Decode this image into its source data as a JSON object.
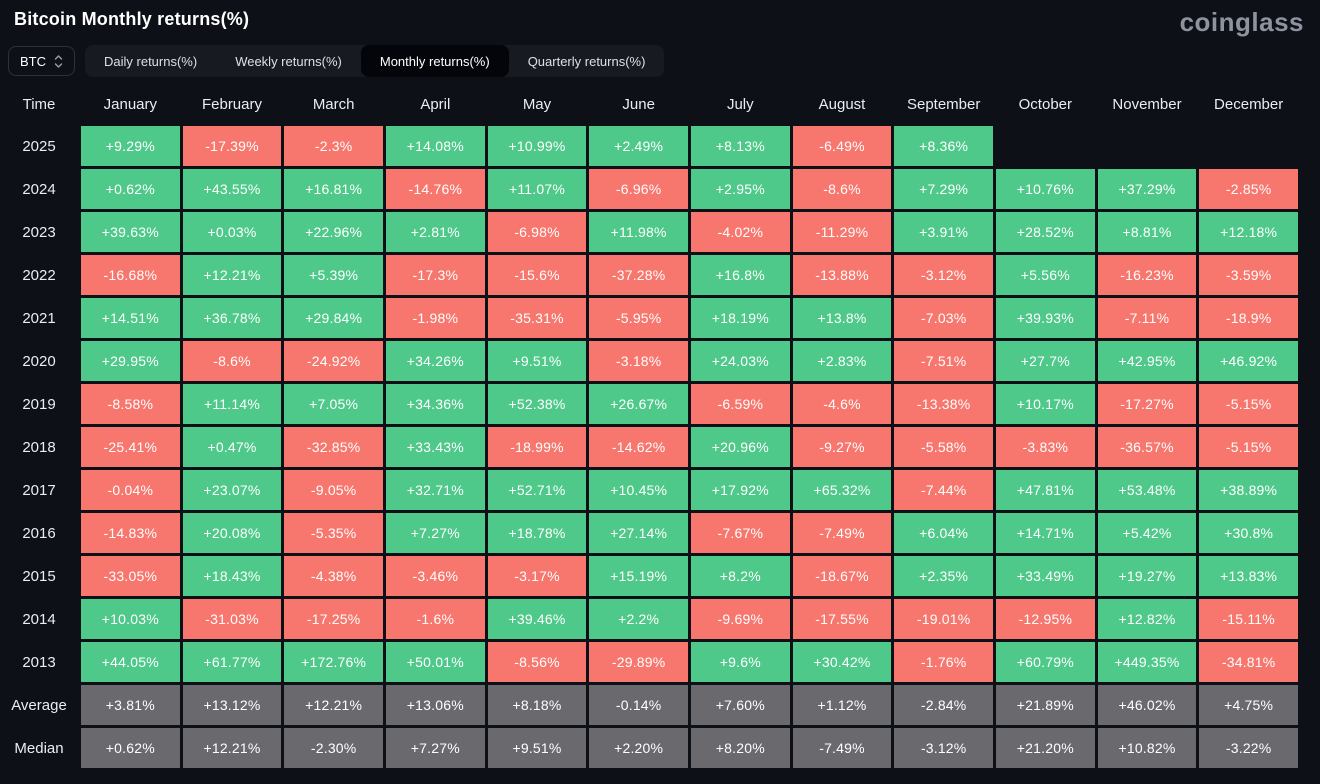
{
  "header": {
    "title": "Bitcoin Monthly returns(%)",
    "logo": "coinglass"
  },
  "controls": {
    "coin": "BTC",
    "tabs": [
      {
        "label": "Daily returns(%)",
        "active": false
      },
      {
        "label": "Weekly returns(%)",
        "active": false
      },
      {
        "label": "Monthly returns(%)",
        "active": true
      },
      {
        "label": "Quarterly returns(%)",
        "active": false
      }
    ]
  },
  "chart_data": {
    "type": "heatmap",
    "title": "Bitcoin Monthly returns(%)",
    "columns": [
      "Time",
      "January",
      "February",
      "March",
      "April",
      "May",
      "June",
      "July",
      "August",
      "September",
      "October",
      "November",
      "December"
    ],
    "colors": {
      "positive": "#4ec98a",
      "negative": "#f7766d",
      "summary": "#6a6a6e"
    },
    "rows": [
      {
        "label": "2025",
        "kind": "year",
        "values": [
          "+9.29%",
          "-17.39%",
          "-2.3%",
          "+14.08%",
          "+10.99%",
          "+2.49%",
          "+8.13%",
          "-6.49%",
          "+8.36%",
          "",
          "",
          ""
        ]
      },
      {
        "label": "2024",
        "kind": "year",
        "values": [
          "+0.62%",
          "+43.55%",
          "+16.81%",
          "-14.76%",
          "+11.07%",
          "-6.96%",
          "+2.95%",
          "-8.6%",
          "+7.29%",
          "+10.76%",
          "+37.29%",
          "-2.85%"
        ]
      },
      {
        "label": "2023",
        "kind": "year",
        "values": [
          "+39.63%",
          "+0.03%",
          "+22.96%",
          "+2.81%",
          "-6.98%",
          "+11.98%",
          "-4.02%",
          "-11.29%",
          "+3.91%",
          "+28.52%",
          "+8.81%",
          "+12.18%"
        ]
      },
      {
        "label": "2022",
        "kind": "year",
        "values": [
          "-16.68%",
          "+12.21%",
          "+5.39%",
          "-17.3%",
          "-15.6%",
          "-37.28%",
          "+16.8%",
          "-13.88%",
          "-3.12%",
          "+5.56%",
          "-16.23%",
          "-3.59%"
        ]
      },
      {
        "label": "2021",
        "kind": "year",
        "values": [
          "+14.51%",
          "+36.78%",
          "+29.84%",
          "-1.98%",
          "-35.31%",
          "-5.95%",
          "+18.19%",
          "+13.8%",
          "-7.03%",
          "+39.93%",
          "-7.11%",
          "-18.9%"
        ]
      },
      {
        "label": "2020",
        "kind": "year",
        "values": [
          "+29.95%",
          "-8.6%",
          "-24.92%",
          "+34.26%",
          "+9.51%",
          "-3.18%",
          "+24.03%",
          "+2.83%",
          "-7.51%",
          "+27.7%",
          "+42.95%",
          "+46.92%"
        ]
      },
      {
        "label": "2019",
        "kind": "year",
        "values": [
          "-8.58%",
          "+11.14%",
          "+7.05%",
          "+34.36%",
          "+52.38%",
          "+26.67%",
          "-6.59%",
          "-4.6%",
          "-13.38%",
          "+10.17%",
          "-17.27%",
          "-5.15%"
        ]
      },
      {
        "label": "2018",
        "kind": "year",
        "values": [
          "-25.41%",
          "+0.47%",
          "-32.85%",
          "+33.43%",
          "-18.99%",
          "-14.62%",
          "+20.96%",
          "-9.27%",
          "-5.58%",
          "-3.83%",
          "-36.57%",
          "-5.15%"
        ]
      },
      {
        "label": "2017",
        "kind": "year",
        "values": [
          "-0.04%",
          "+23.07%",
          "-9.05%",
          "+32.71%",
          "+52.71%",
          "+10.45%",
          "+17.92%",
          "+65.32%",
          "-7.44%",
          "+47.81%",
          "+53.48%",
          "+38.89%"
        ]
      },
      {
        "label": "2016",
        "kind": "year",
        "values": [
          "-14.83%",
          "+20.08%",
          "-5.35%",
          "+7.27%",
          "+18.78%",
          "+27.14%",
          "-7.67%",
          "-7.49%",
          "+6.04%",
          "+14.71%",
          "+5.42%",
          "+30.8%"
        ]
      },
      {
        "label": "2015",
        "kind": "year",
        "values": [
          "-33.05%",
          "+18.43%",
          "-4.38%",
          "-3.46%",
          "-3.17%",
          "+15.19%",
          "+8.2%",
          "-18.67%",
          "+2.35%",
          "+33.49%",
          "+19.27%",
          "+13.83%"
        ]
      },
      {
        "label": "2014",
        "kind": "year",
        "values": [
          "+10.03%",
          "-31.03%",
          "-17.25%",
          "-1.6%",
          "+39.46%",
          "+2.2%",
          "-9.69%",
          "-17.55%",
          "-19.01%",
          "-12.95%",
          "+12.82%",
          "-15.11%"
        ]
      },
      {
        "label": "2013",
        "kind": "year",
        "values": [
          "+44.05%",
          "+61.77%",
          "+172.76%",
          "+50.01%",
          "-8.56%",
          "-29.89%",
          "+9.6%",
          "+30.42%",
          "-1.76%",
          "+60.79%",
          "+449.35%",
          "-34.81%"
        ]
      },
      {
        "label": "Average",
        "kind": "summary",
        "values": [
          "+3.81%",
          "+13.12%",
          "+12.21%",
          "+13.06%",
          "+8.18%",
          "-0.14%",
          "+7.60%",
          "+1.12%",
          "-2.84%",
          "+21.89%",
          "+46.02%",
          "+4.75%"
        ]
      },
      {
        "label": "Median",
        "kind": "summary",
        "values": [
          "+0.62%",
          "+12.21%",
          "-2.30%",
          "+7.27%",
          "+9.51%",
          "+2.20%",
          "+8.20%",
          "-7.49%",
          "-3.12%",
          "+21.20%",
          "+10.82%",
          "-3.22%"
        ]
      }
    ]
  }
}
